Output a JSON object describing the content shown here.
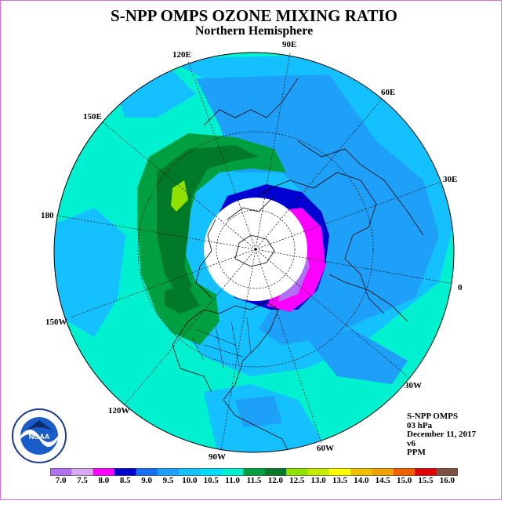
{
  "header": {
    "title": "S-NPP OMPS OZONE MIXING RATIO",
    "subtitle": "Northern Hemisphere"
  },
  "longitude_labels": [
    "90E",
    "60E",
    "30E",
    "0",
    "30W",
    "60W",
    "90W",
    "120W",
    "150W",
    "180",
    "150E",
    "120E"
  ],
  "info": {
    "instrument": "S-NPP OMPS",
    "level": "03 hPa",
    "date": "December 11, 2017",
    "version": "v6",
    "units": "PPM"
  },
  "colorbar": {
    "ticks": [
      "7.0",
      "7.5",
      "8.0",
      "8.5",
      "9.0",
      "9.5",
      "10.0",
      "10.5",
      "11.0",
      "11.5",
      "12.0",
      "12.5",
      "13.0",
      "13.5",
      "14.0",
      "14.5",
      "15.0",
      "15.5",
      "16.0"
    ],
    "colors": [
      "#b070f0",
      "#d8a8f0",
      "#ff00ff",
      "#0000d0",
      "#1470f0",
      "#1ea0f8",
      "#14c0ff",
      "#00dcff",
      "#00f0d0",
      "#00a040",
      "#007a28",
      "#90e000",
      "#c8ec00",
      "#ffff00",
      "#f0c000",
      "#f0a000",
      "#f06000",
      "#e00000",
      "#805040"
    ]
  },
  "logo": {
    "text": "NOAA",
    "ring_text": "NATIONAL OCEANIC AND ATMOSPHERIC ADMINISTRATION · U.S. DEPARTMENT OF COMMERCE"
  }
}
